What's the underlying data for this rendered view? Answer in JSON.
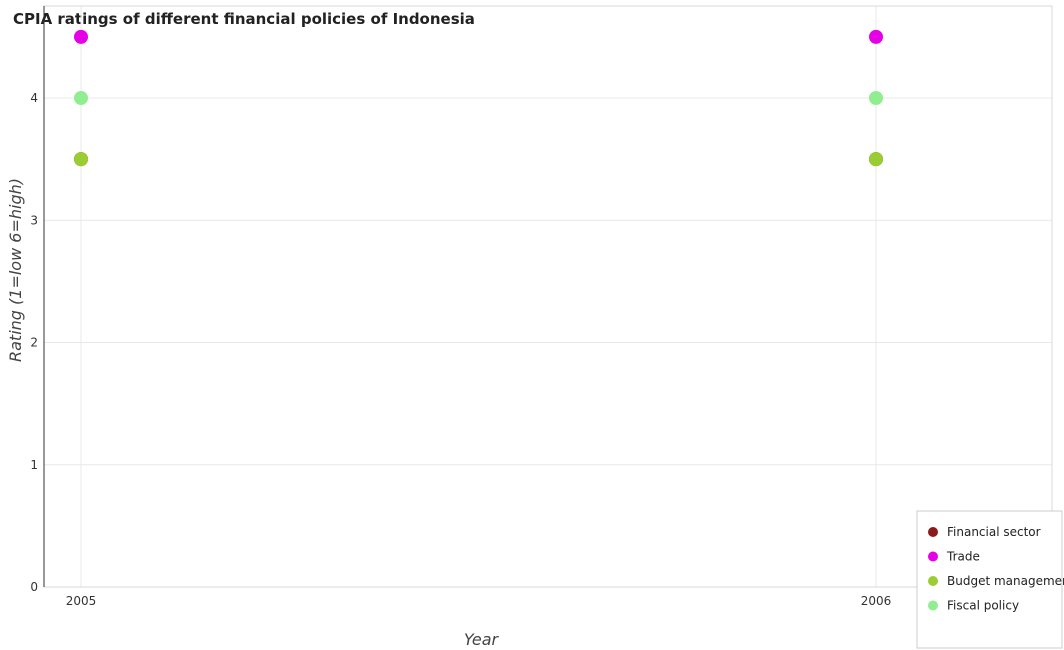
{
  "chart_data": {
    "type": "scatter",
    "title": "CPIA ratings of different financial policies of Indonesia",
    "xlabel": "Year",
    "ylabel": "Rating (1=low 6=high)",
    "categories": [
      "2005",
      "2006"
    ],
    "yticks": [
      "0",
      "1",
      "2",
      "3",
      "4"
    ],
    "ylim": [
      0,
      4.6
    ],
    "grid": true,
    "legend_position": "bottom-right",
    "series": [
      {
        "name": "Financial sector",
        "color": "#8b1a1a",
        "values": [
          3.5,
          3.5
        ]
      },
      {
        "name": "Trade",
        "color": "#e600e6",
        "values": [
          4.5,
          4.5
        ]
      },
      {
        "name": "Budget management",
        "color": "#9acd32",
        "values": [
          3.5,
          3.5
        ]
      },
      {
        "name": "Fiscal policy",
        "color": "#90ee90",
        "values": [
          4.0,
          4.0
        ]
      }
    ]
  }
}
